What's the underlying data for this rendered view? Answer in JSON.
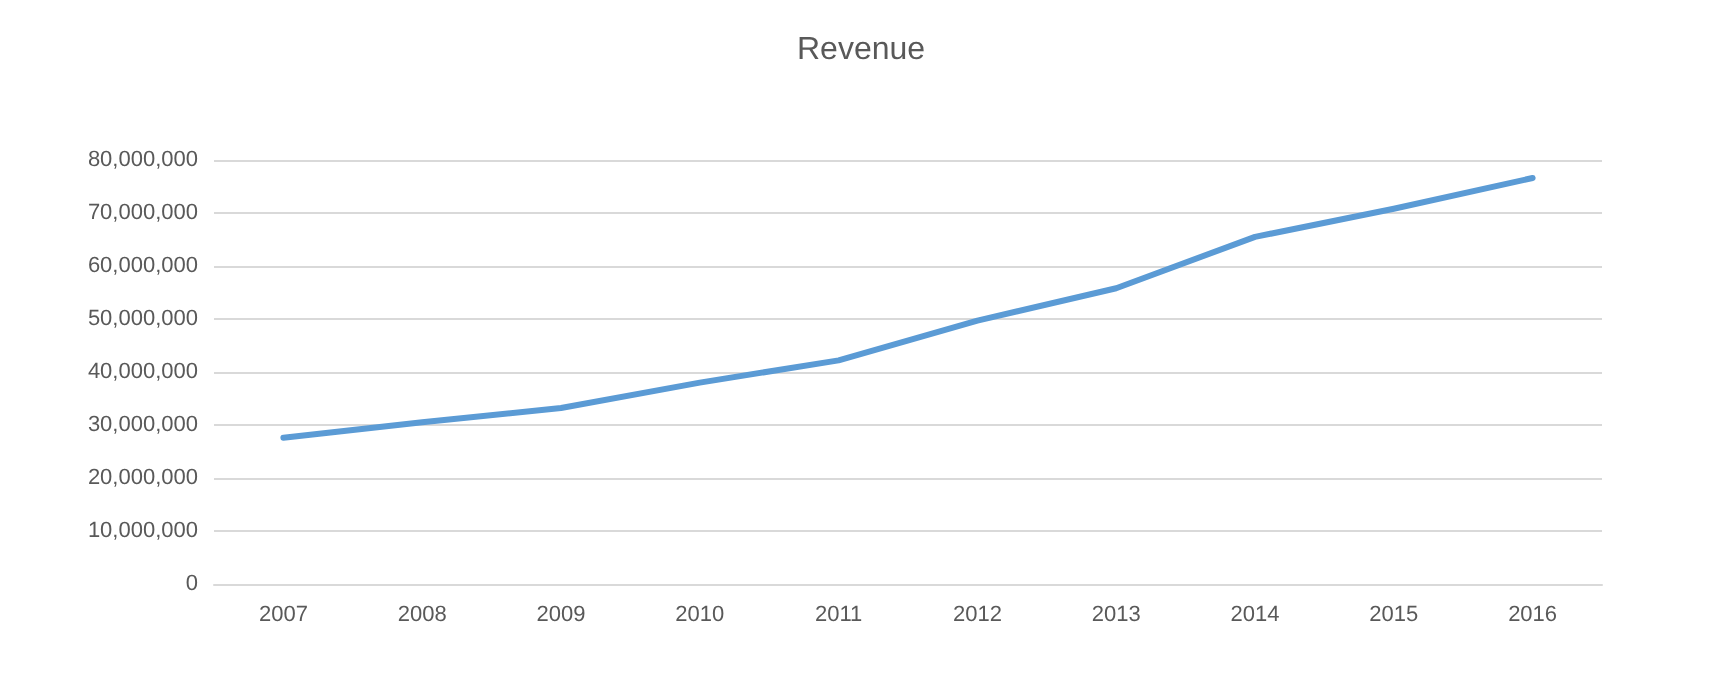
{
  "chart_data": {
    "type": "line",
    "title": "Revenue",
    "categories": [
      "2007",
      "2008",
      "2009",
      "2010",
      "2011",
      "2012",
      "2013",
      "2014",
      "2015",
      "2016"
    ],
    "series": [
      {
        "color": "#5b9bd5",
        "values": [
          27600000,
          30500000,
          33200000,
          38000000,
          42200000,
          49700000,
          55800000,
          65500000,
          70800000,
          76600000
        ]
      }
    ],
    "ylim": [
      0,
      80000000
    ],
    "yticks": [
      0,
      {
        "value": 10000000,
        "label": "10,000,000"
      },
      {
        "value": 20000000,
        "label": "20,000,000"
      },
      {
        "value": 30000000,
        "label": "30,000,000"
      },
      {
        "value": 40000000,
        "label": "40,000,000"
      },
      {
        "value": 50000000,
        "label": "50,000,000"
      },
      {
        "value": 60000000,
        "label": "60,000,000"
      },
      {
        "value": 70000000,
        "label": "70,000,000"
      },
      {
        "value": 80000000,
        "label": "80,000,000"
      }
    ],
    "grid": "y",
    "marker": "none",
    "line_style": "solid"
  }
}
